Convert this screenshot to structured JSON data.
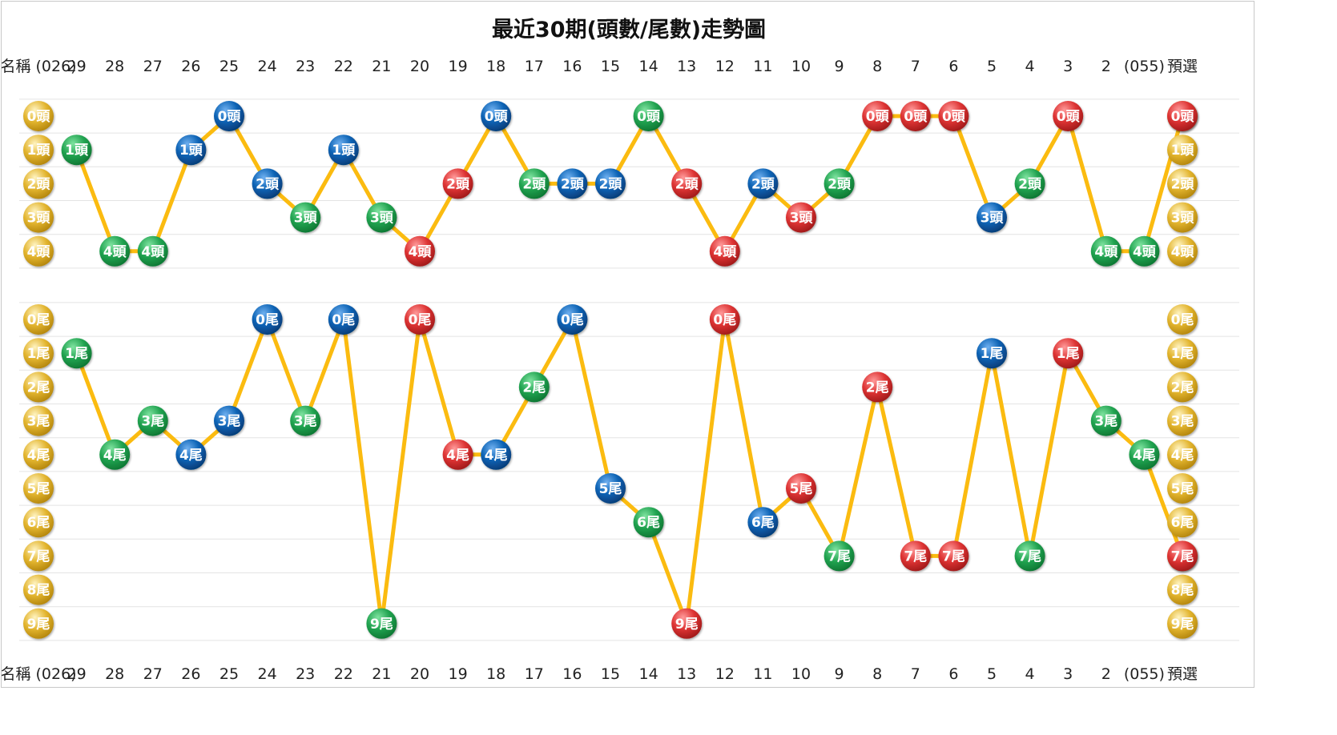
{
  "chart_data": {
    "type": "line",
    "title": "最近30期(頭數/尾數)走勢圖",
    "header_labels": [
      "名稱 (026)",
      "29",
      "28",
      "27",
      "26",
      "25",
      "24",
      "23",
      "22",
      "21",
      "20",
      "19",
      "18",
      "17",
      "16",
      "15",
      "14",
      "13",
      "12",
      "11",
      "10",
      "9",
      "8",
      "7",
      "6",
      "5",
      "4",
      "3",
      "2",
      "(055)",
      "預選"
    ],
    "footer_labels": [
      "名稱 (026)",
      "29",
      "28",
      "27",
      "26",
      "25",
      "24",
      "23",
      "22",
      "21",
      "20",
      "19",
      "18",
      "17",
      "16",
      "15",
      "14",
      "13",
      "12",
      "11",
      "10",
      "9",
      "8",
      "7",
      "6",
      "5",
      "4",
      "3",
      "2",
      "(055)",
      "預選"
    ],
    "colors": {
      "gold": "#e3b52f",
      "green": "#21a350",
      "blue": "#0b62b4",
      "red": "#dd3333",
      "line": "#fbbb10"
    },
    "panels": [
      {
        "name": "head",
        "suffix": "頭",
        "levels": [
          "0頭",
          "1頭",
          "2頭",
          "3頭",
          "4頭"
        ],
        "values": [
          1,
          4,
          4,
          1,
          0,
          2,
          3,
          1,
          3,
          4,
          2,
          0,
          2,
          2,
          2,
          0,
          2,
          4,
          2,
          3,
          2,
          0,
          0,
          0,
          3,
          2,
          0,
          4,
          4,
          0
        ],
        "colors": [
          "green",
          "green",
          "green",
          "blue",
          "blue",
          "blue",
          "green",
          "blue",
          "green",
          "red",
          "red",
          "blue",
          "green",
          "blue",
          "blue",
          "green",
          "red",
          "red",
          "blue",
          "red",
          "green",
          "red",
          "red",
          "red",
          "blue",
          "green",
          "red",
          "green",
          "green",
          "red"
        ]
      },
      {
        "name": "tail",
        "suffix": "尾",
        "levels": [
          "0尾",
          "1尾",
          "2尾",
          "3尾",
          "4尾",
          "5尾",
          "6尾",
          "7尾",
          "8尾",
          "9尾"
        ],
        "values": [
          1,
          4,
          3,
          4,
          3,
          0,
          3,
          0,
          9,
          0,
          4,
          4,
          2,
          0,
          5,
          6,
          9,
          0,
          6,
          5,
          7,
          2,
          7,
          7,
          1,
          7,
          1,
          3,
          4,
          7
        ],
        "colors": [
          "green",
          "green",
          "green",
          "blue",
          "blue",
          "blue",
          "green",
          "blue",
          "green",
          "red",
          "red",
          "blue",
          "green",
          "blue",
          "blue",
          "green",
          "red",
          "red",
          "blue",
          "red",
          "green",
          "red",
          "red",
          "red",
          "blue",
          "green",
          "red",
          "green",
          "green",
          "red"
        ]
      }
    ]
  }
}
